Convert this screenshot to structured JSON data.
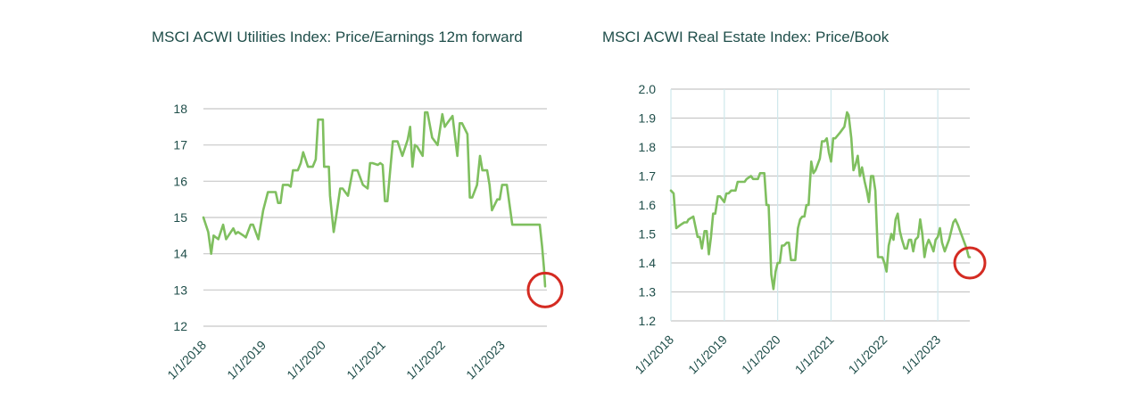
{
  "colors": {
    "series": "#7fbf5f",
    "highlight": "#d42b22",
    "text": "#1f4e4a",
    "grid": "#c8c8c8",
    "vgrid": "#cfe8ec"
  },
  "chart_data": [
    {
      "type": "line",
      "title": "MSCI ACWI Utilities Index: Price/Earnings 12m forward",
      "xlabel": "",
      "ylabel": "",
      "ylim": [
        12,
        18
      ],
      "yticks": [
        "12",
        "13",
        "14",
        "15",
        "16",
        "17",
        "18"
      ],
      "xlim": [
        2018.0,
        2023.75
      ],
      "xticks": [
        "1/1/2018",
        "1/1/2019",
        "1/1/2020",
        "1/1/2021",
        "1/1/2022",
        "1/1/2023"
      ],
      "grid": "horizontal",
      "legend": "none",
      "highlight": {
        "x": 2023.72,
        "y": 13.0
      },
      "series": [
        {
          "x": [
            2018.0,
            2018.08,
            2018.13,
            2018.17,
            2018.25,
            2018.33,
            2018.38,
            2018.42,
            2018.5,
            2018.54,
            2018.58,
            2018.67,
            2018.71,
            2018.79,
            2018.83,
            2018.92,
            2019.0,
            2019.08,
            2019.17,
            2019.21,
            2019.25,
            2019.29,
            2019.33,
            2019.42,
            2019.46,
            2019.5,
            2019.58,
            2019.63,
            2019.67,
            2019.75,
            2019.83,
            2019.88,
            2019.92,
            2020.0,
            2020.02,
            2020.1,
            2020.12,
            2020.18,
            2020.22,
            2020.29,
            2020.33,
            2020.42,
            2020.5,
            2020.58,
            2020.67,
            2020.75,
            2020.79,
            2020.83,
            2020.92,
            2020.96,
            2021.0,
            2021.04,
            2021.08,
            2021.17,
            2021.21,
            2021.25,
            2021.33,
            2021.42,
            2021.46,
            2021.5,
            2021.54,
            2021.58,
            2021.67,
            2021.71,
            2021.75,
            2021.83,
            2021.92,
            2022.0,
            2022.04,
            2022.08,
            2022.17,
            2022.25,
            2022.29,
            2022.33,
            2022.42,
            2022.46,
            2022.5,
            2022.58,
            2022.63,
            2022.67,
            2022.75,
            2022.79,
            2022.83,
            2022.92,
            2022.96,
            2023.0,
            2023.04,
            2023.08,
            2023.17,
            2023.25,
            2023.29,
            2023.33,
            2023.42,
            2023.5,
            2023.58,
            2023.63,
            2023.67,
            2023.7,
            2023.72
          ],
          "values": [
            15.0,
            14.6,
            14.0,
            14.5,
            14.4,
            14.8,
            14.4,
            14.5,
            14.7,
            14.55,
            14.6,
            14.5,
            14.45,
            14.8,
            14.8,
            14.4,
            15.2,
            15.7,
            15.7,
            15.7,
            15.4,
            15.4,
            15.9,
            15.9,
            15.85,
            16.3,
            16.3,
            16.5,
            16.8,
            16.4,
            16.4,
            16.6,
            17.7,
            17.7,
            16.4,
            16.4,
            15.6,
            14.6,
            15.0,
            15.8,
            15.8,
            15.6,
            16.3,
            16.3,
            15.9,
            15.8,
            16.5,
            16.5,
            16.45,
            16.5,
            16.45,
            15.45,
            15.45,
            17.1,
            17.1,
            17.1,
            16.7,
            17.15,
            17.5,
            16.4,
            17.0,
            16.95,
            16.7,
            17.9,
            17.9,
            17.2,
            17.0,
            17.85,
            17.5,
            17.6,
            17.8,
            16.7,
            17.6,
            17.6,
            17.3,
            15.55,
            15.55,
            15.9,
            16.7,
            16.3,
            16.3,
            15.9,
            15.2,
            15.5,
            15.5,
            15.9,
            15.9,
            15.9,
            14.8,
            14.8,
            14.8,
            14.8,
            14.8,
            14.8,
            14.8,
            14.8,
            14.2,
            13.6,
            13.1
          ]
        }
      ]
    },
    {
      "type": "line",
      "title": "MSCI ACWI Real Estate Index: Price/Book",
      "xlabel": "",
      "ylabel": "",
      "ylim": [
        1.2,
        2.0
      ],
      "yticks": [
        "1.2",
        "1.3",
        "1.4",
        "1.5",
        "1.6",
        "1.7",
        "1.8",
        "1.9",
        "2.0"
      ],
      "xlim": [
        2018.0,
        2023.6
      ],
      "xticks": [
        "1/1/2018",
        "1/1/2019",
        "1/1/2020",
        "1/1/2021",
        "1/1/2022",
        "1/1/2023"
      ],
      "grid": "both",
      "legend": "none",
      "highlight": {
        "x": 2023.6,
        "y": 1.4
      },
      "series": [
        {
          "x": [
            2018.0,
            2018.05,
            2018.1,
            2018.17,
            2018.25,
            2018.3,
            2018.33,
            2018.42,
            2018.5,
            2018.54,
            2018.58,
            2018.63,
            2018.67,
            2018.71,
            2018.75,
            2018.79,
            2018.83,
            2018.88,
            2018.92,
            2019.0,
            2019.04,
            2019.08,
            2019.13,
            2019.17,
            2019.21,
            2019.25,
            2019.29,
            2019.33,
            2019.38,
            2019.42,
            2019.5,
            2019.54,
            2019.58,
            2019.63,
            2019.67,
            2019.71,
            2019.75,
            2019.79,
            2019.83,
            2019.88,
            2019.92,
            2019.96,
            2020.0,
            2020.04,
            2020.08,
            2020.12,
            2020.17,
            2020.21,
            2020.25,
            2020.29,
            2020.33,
            2020.38,
            2020.42,
            2020.46,
            2020.5,
            2020.54,
            2020.58,
            2020.63,
            2020.67,
            2020.71,
            2020.75,
            2020.79,
            2020.83,
            2020.88,
            2020.92,
            2020.96,
            2021.0,
            2021.04,
            2021.08,
            2021.17,
            2021.25,
            2021.3,
            2021.33,
            2021.38,
            2021.42,
            2021.46,
            2021.5,
            2021.54,
            2021.58,
            2021.63,
            2021.67,
            2021.71,
            2021.75,
            2021.79,
            2021.83,
            2021.88,
            2021.92,
            2021.96,
            2022.0,
            2022.04,
            2022.08,
            2022.13,
            2022.17,
            2022.21,
            2022.25,
            2022.29,
            2022.33,
            2022.38,
            2022.42,
            2022.46,
            2022.5,
            2022.54,
            2022.58,
            2022.63,
            2022.67,
            2022.71,
            2022.75,
            2022.79,
            2022.83,
            2022.88,
            2022.92,
            2022.96,
            2023.0,
            2023.04,
            2023.08,
            2023.13,
            2023.17,
            2023.21,
            2023.25,
            2023.29,
            2023.33,
            2023.38,
            2023.42,
            2023.46,
            2023.5,
            2023.54,
            2023.58,
            2023.6
          ],
          "values": [
            1.65,
            1.64,
            1.52,
            1.53,
            1.54,
            1.54,
            1.55,
            1.56,
            1.49,
            1.49,
            1.45,
            1.51,
            1.51,
            1.43,
            1.49,
            1.57,
            1.57,
            1.63,
            1.63,
            1.61,
            1.64,
            1.64,
            1.65,
            1.65,
            1.65,
            1.68,
            1.68,
            1.68,
            1.68,
            1.69,
            1.7,
            1.69,
            1.69,
            1.69,
            1.71,
            1.71,
            1.71,
            1.6,
            1.6,
            1.36,
            1.31,
            1.37,
            1.4,
            1.4,
            1.46,
            1.46,
            1.47,
            1.47,
            1.41,
            1.41,
            1.41,
            1.52,
            1.55,
            1.56,
            1.56,
            1.6,
            1.6,
            1.75,
            1.71,
            1.72,
            1.74,
            1.76,
            1.82,
            1.82,
            1.83,
            1.78,
            1.75,
            1.83,
            1.83,
            1.85,
            1.87,
            1.92,
            1.91,
            1.83,
            1.72,
            1.74,
            1.77,
            1.7,
            1.73,
            1.68,
            1.65,
            1.61,
            1.7,
            1.7,
            1.65,
            1.42,
            1.42,
            1.42,
            1.4,
            1.37,
            1.46,
            1.5,
            1.48,
            1.55,
            1.57,
            1.51,
            1.48,
            1.45,
            1.45,
            1.48,
            1.48,
            1.44,
            1.48,
            1.49,
            1.55,
            1.5,
            1.42,
            1.46,
            1.48,
            1.46,
            1.44,
            1.48,
            1.49,
            1.52,
            1.47,
            1.44,
            1.46,
            1.48,
            1.51,
            1.54,
            1.55,
            1.53,
            1.51,
            1.49,
            1.47,
            1.45,
            1.42,
            1.42
          ]
        }
      ]
    }
  ]
}
